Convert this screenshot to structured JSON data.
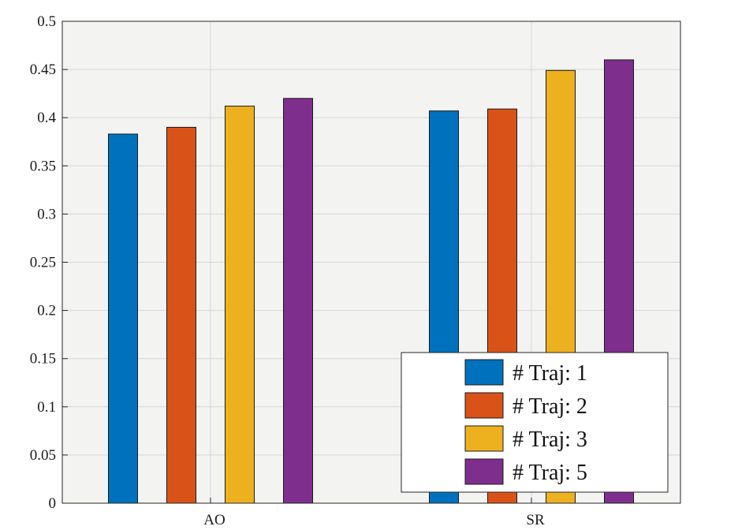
{
  "chart_data": {
    "type": "bar",
    "title": "",
    "xlabel": "",
    "ylabel": "",
    "categories": [
      "AO",
      "SR"
    ],
    "ylim": [
      0,
      0.5
    ],
    "yticks": [
      0,
      0.05,
      0.1,
      0.15,
      0.2,
      0.25,
      0.3,
      0.35,
      0.4,
      0.45,
      0.5
    ],
    "ytick_labels": [
      "0",
      "0.05",
      "0.1",
      "0.15",
      "0.2",
      "0.25",
      "0.3",
      "0.35",
      "0.4",
      "0.45",
      "0.5"
    ],
    "grid": true,
    "legend_position": "bottom-right",
    "series": [
      {
        "name": "# Traj: 1",
        "color": "#0072bd",
        "values": [
          0.383,
          0.407
        ]
      },
      {
        "name": "# Traj: 2",
        "color": "#d95319",
        "values": [
          0.39,
          0.409
        ]
      },
      {
        "name": "# Traj: 3",
        "color": "#edb120",
        "values": [
          0.412,
          0.449
        ]
      },
      {
        "name": "# Traj: 5",
        "color": "#7e2f8e",
        "values": [
          0.42,
          0.46
        ]
      }
    ]
  }
}
